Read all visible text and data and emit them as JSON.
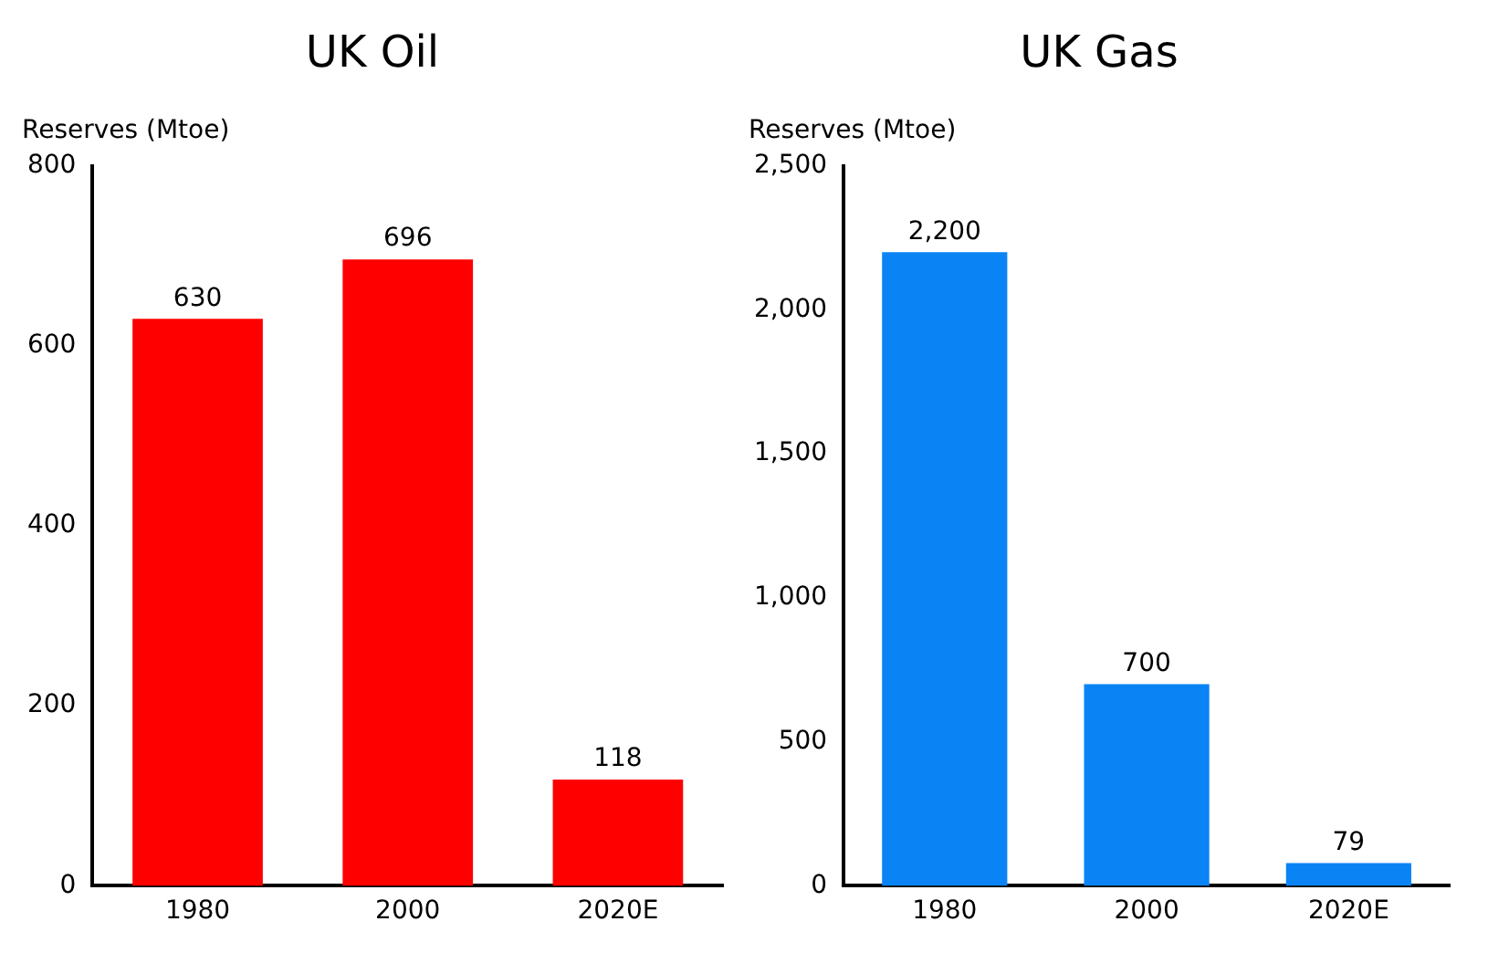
{
  "chart_data": [
    {
      "type": "bar",
      "title": "UK Oil",
      "ylabel": "Reserves (Mtoe)",
      "categories": [
        "1980",
        "2000",
        "2020E"
      ],
      "values": [
        630,
        696,
        118
      ],
      "color": "#ff0000",
      "ylim": [
        0,
        800
      ],
      "yticks": [
        0,
        200,
        400,
        600,
        800
      ],
      "grid": false,
      "data_labels": true
    },
    {
      "type": "bar",
      "title": "UK Gas",
      "ylabel": "Reserves (Mtoe)",
      "categories": [
        "1980",
        "2000",
        "2020E"
      ],
      "values": [
        2200,
        700,
        79
      ],
      "value_labels": [
        "2,200",
        "700",
        "79"
      ],
      "color": "#0a84f5",
      "ylim": [
        0,
        2500
      ],
      "yticks": [
        {
          "value": 0,
          "label": "0"
        },
        {
          "value": 500,
          "label": "500"
        },
        {
          "value": 1000,
          "label": "1,000"
        },
        {
          "value": 1500,
          "label": "1,500"
        },
        {
          "value": 2000,
          "label": "2,000"
        },
        {
          "value": 2500,
          "label": "2,500"
        }
      ],
      "grid": false
    }
  ]
}
